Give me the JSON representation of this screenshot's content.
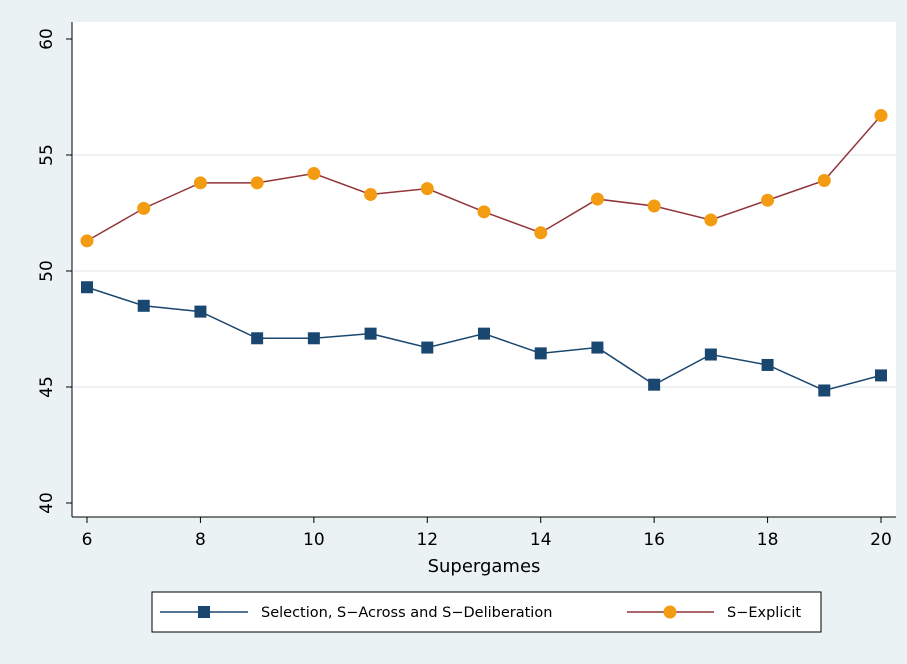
{
  "chart_data": {
    "type": "line",
    "title": "",
    "xlabel": "Supergames",
    "ylabel": "",
    "x": [
      6,
      7,
      8,
      9,
      10,
      11,
      12,
      13,
      14,
      15,
      16,
      17,
      18,
      19,
      20
    ],
    "xticks": [
      6,
      8,
      10,
      12,
      14,
      16,
      18,
      20
    ],
    "yticks": [
      40,
      45,
      50,
      55,
      60
    ],
    "xlim": [
      6,
      20
    ],
    "ylim": [
      40,
      60
    ],
    "grid": "horizontal",
    "legend_position": "bottom",
    "series": [
      {
        "name": "Selection, S−Across and S−Deliberation",
        "marker": "square",
        "line_color": "#1a476f",
        "marker_color": "#1a476f",
        "values": [
          49.3,
          48.5,
          48.25,
          47.1,
          47.1,
          47.3,
          46.7,
          47.3,
          46.45,
          46.7,
          45.1,
          46.4,
          45.95,
          44.85,
          45.5
        ]
      },
      {
        "name": "S−Explicit",
        "marker": "circle",
        "line_color": "#90353b",
        "marker_color": "#f39c12",
        "values": [
          51.3,
          52.7,
          53.8,
          53.8,
          54.2,
          53.3,
          53.55,
          52.55,
          51.65,
          53.1,
          52.8,
          52.2,
          53.05,
          53.9,
          56.7
        ]
      }
    ]
  }
}
